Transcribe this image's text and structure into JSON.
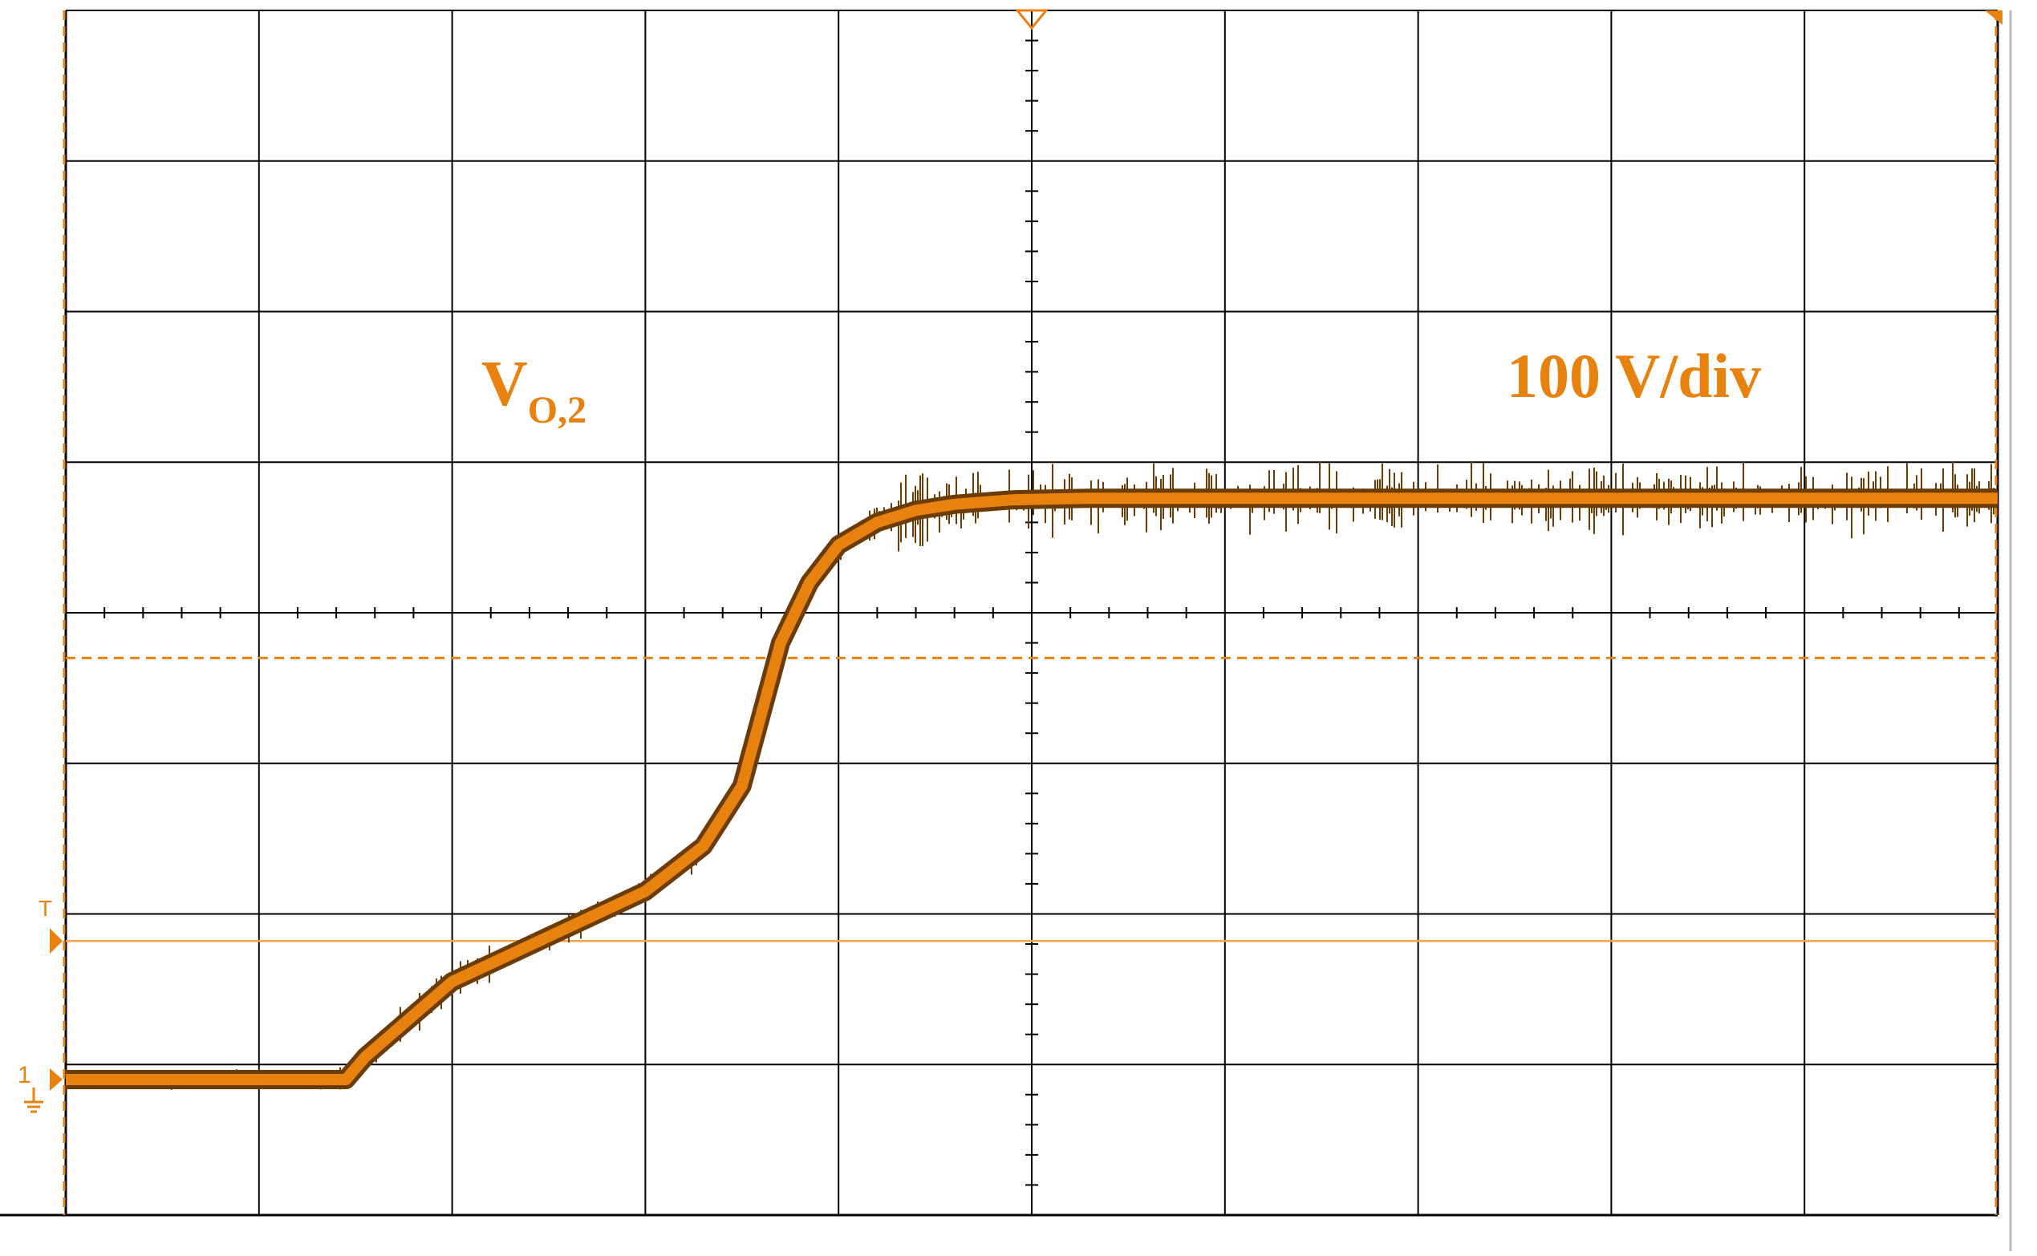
{
  "chart_data": {
    "type": "line",
    "title": "",
    "xlabel": "",
    "ylabel": "",
    "grid": true,
    "x_divisions": 10,
    "y_divisions": 8,
    "xlim": [
      0,
      10
    ],
    "ylim": [
      -4,
      4
    ],
    "series": [
      {
        "name": "V_O,2",
        "x": [
          0.0,
          1.45,
          1.55,
          2.0,
          2.5,
          3.0,
          3.3,
          3.5,
          3.7,
          3.85,
          4.0,
          4.2,
          4.4,
          4.6,
          4.9,
          5.3,
          6.0,
          7.0,
          8.0,
          9.0,
          10.0
        ],
        "y": [
          -3.1,
          -3.1,
          -2.95,
          -2.45,
          -2.15,
          -1.85,
          -1.55,
          -1.15,
          -0.2,
          0.2,
          0.45,
          0.6,
          0.68,
          0.72,
          0.75,
          0.76,
          0.76,
          0.76,
          0.76,
          0.76,
          0.76
        ],
        "color": "#e8820f"
      }
    ],
    "annotations": [
      {
        "text": "V",
        "subscript": "O,2"
      },
      {
        "text": "100 V/div"
      }
    ],
    "markers": {
      "channel_ground_label": "1",
      "trigger_label": "T",
      "trigger_level": -2.18,
      "dashed_reference_level": -0.3
    }
  },
  "colors": {
    "trace": "#e8820f",
    "trace_dark": "#6b3c05",
    "grid": "#000000",
    "reference": "#f5a64a"
  }
}
